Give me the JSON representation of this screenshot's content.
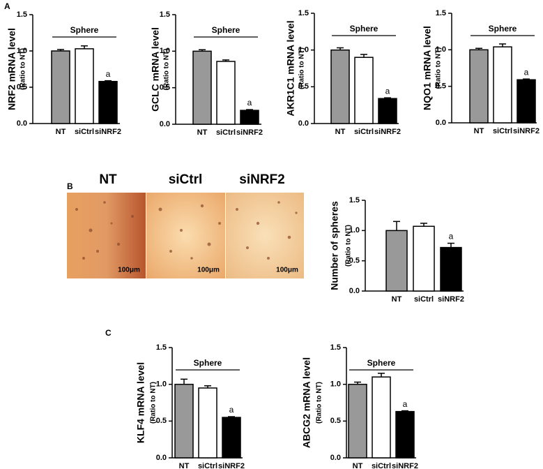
{
  "panel_labels": [
    "A",
    "B",
    "C"
  ],
  "micrographs": [
    {
      "label": "NT",
      "scale": "100μm"
    },
    {
      "label": "siCtrl",
      "scale": "100μm"
    },
    {
      "label": "siNRF2",
      "scale": "100μm"
    }
  ],
  "chart_data": [
    {
      "type": "bar",
      "y_label": "NRF2 mRNA level",
      "y_sublabel": "(Ratio to NT)",
      "group_label": "Sphere",
      "categories": [
        "NT",
        "siCtrl",
        "siNRF2"
      ],
      "values": [
        1.0,
        1.03,
        0.58
      ],
      "errors": [
        0.02,
        0.04,
        0.01
      ],
      "significance": [
        null,
        null,
        "a"
      ],
      "colors": [
        "#999999",
        "#ffffff",
        "#000000"
      ],
      "ylim": [
        0,
        1.5
      ],
      "yticks": [
        {
          "value": 0,
          "label": "0.0"
        },
        {
          "value": 0.5,
          "label": "0.5"
        },
        {
          "value": 1,
          "label": "1.0"
        },
        {
          "value": 1.5,
          "label": "1.5"
        }
      ]
    },
    {
      "type": "bar",
      "y_label": "GCLC mRNA level",
      "y_sublabel": "(Ratio to NT)",
      "group_label": "Sphere",
      "categories": [
        "NT",
        "siCtrl",
        "siNRF2"
      ],
      "values": [
        1.0,
        0.86,
        0.19
      ],
      "errors": [
        0.02,
        0.02,
        0.01
      ],
      "significance": [
        null,
        null,
        "a"
      ],
      "colors": [
        "#999999",
        "#ffffff",
        "#000000"
      ],
      "ylim": [
        0,
        1.5
      ],
      "yticks": [
        {
          "value": 0,
          "label": "0.0"
        },
        {
          "value": 0.5,
          "label": "0.5"
        },
        {
          "value": 1,
          "label": "1.0"
        },
        {
          "value": 1.5,
          "label": "1.5"
        }
      ]
    },
    {
      "type": "bar",
      "y_label": "AKR1C1 mRNA level",
      "y_sublabel": "(Ratio to NT)",
      "group_label": "Sphere",
      "categories": [
        "NT",
        "siCtrl",
        "siNRF2"
      ],
      "values": [
        1.0,
        0.9,
        0.34
      ],
      "errors": [
        0.03,
        0.04,
        0.01
      ],
      "significance": [
        null,
        null,
        "a"
      ],
      "colors": [
        "#999999",
        "#ffffff",
        "#000000"
      ],
      "ylim": [
        0,
        1.5
      ],
      "yticks": [
        {
          "value": 0,
          "label": "0.0"
        },
        {
          "value": 0.5,
          "label": "0.5"
        },
        {
          "value": 1,
          "label": "1.0"
        },
        {
          "value": 1.5,
          "label": "1.5"
        }
      ]
    },
    {
      "type": "bar",
      "y_label": "NQO1 mRNA level",
      "y_sublabel": "(Ratio to NT)",
      "group_label": "Sphere",
      "categories": [
        "NT",
        "siCtrl",
        "siNRF2"
      ],
      "values": [
        1.0,
        1.04,
        0.59
      ],
      "errors": [
        0.02,
        0.04,
        0.01
      ],
      "significance": [
        null,
        null,
        "a"
      ],
      "colors": [
        "#999999",
        "#ffffff",
        "#000000"
      ],
      "ylim": [
        0,
        1.5
      ],
      "yticks": [
        {
          "value": 0,
          "label": "0.0"
        },
        {
          "value": 0.5,
          "label": "0.5"
        },
        {
          "value": 1,
          "label": "1.0"
        },
        {
          "value": 1.5,
          "label": "1.5"
        }
      ]
    },
    {
      "type": "bar",
      "y_label": "Number of spheres",
      "y_sublabel": "(Ratio to NT)",
      "categories": [
        "NT",
        "siCtrl",
        "siNRF2"
      ],
      "values": [
        1.0,
        1.07,
        0.72
      ],
      "errors": [
        0.15,
        0.05,
        0.07
      ],
      "significance": [
        null,
        null,
        "a"
      ],
      "colors": [
        "#999999",
        "#ffffff",
        "#000000"
      ],
      "ylim": [
        0,
        1.5
      ],
      "yticks": [
        {
          "value": 0,
          "label": "0.0"
        },
        {
          "value": 0.5,
          "label": "0.5"
        },
        {
          "value": 1,
          "label": "1.0"
        },
        {
          "value": 1.5,
          "label": "1.5"
        }
      ]
    },
    {
      "type": "bar",
      "y_label": "KLF4 mRNA level",
      "y_sublabel": "(Ratio to NT)",
      "group_label": "Sphere",
      "categories": [
        "NT",
        "siCtrl",
        "siNRF2"
      ],
      "values": [
        1.0,
        0.95,
        0.55
      ],
      "errors": [
        0.07,
        0.03,
        0.01
      ],
      "significance": [
        null,
        null,
        "a"
      ],
      "colors": [
        "#999999",
        "#ffffff",
        "#000000"
      ],
      "ylim": [
        0,
        1.5
      ],
      "yticks": [
        {
          "value": 0,
          "label": "0.0"
        },
        {
          "value": 0.5,
          "label": "0.5"
        },
        {
          "value": 1,
          "label": "1.0"
        },
        {
          "value": 1.5,
          "label": "1.5"
        }
      ]
    },
    {
      "type": "bar",
      "y_label": "ABCG2 mRNA level",
      "y_sublabel": "(Ratio to NT)",
      "group_label": "Sphere",
      "categories": [
        "NT",
        "siCtrl",
        "siNRF2"
      ],
      "values": [
        1.0,
        1.1,
        0.63
      ],
      "errors": [
        0.03,
        0.05,
        0.01
      ],
      "significance": [
        null,
        null,
        "a"
      ],
      "colors": [
        "#999999",
        "#ffffff",
        "#000000"
      ],
      "ylim": [
        0,
        1.5
      ],
      "yticks": [
        {
          "value": 0,
          "label": "0.0"
        },
        {
          "value": 0.5,
          "label": "0.5"
        },
        {
          "value": 1,
          "label": "1.0"
        },
        {
          "value": 1.5,
          "label": "1.5"
        }
      ]
    }
  ]
}
